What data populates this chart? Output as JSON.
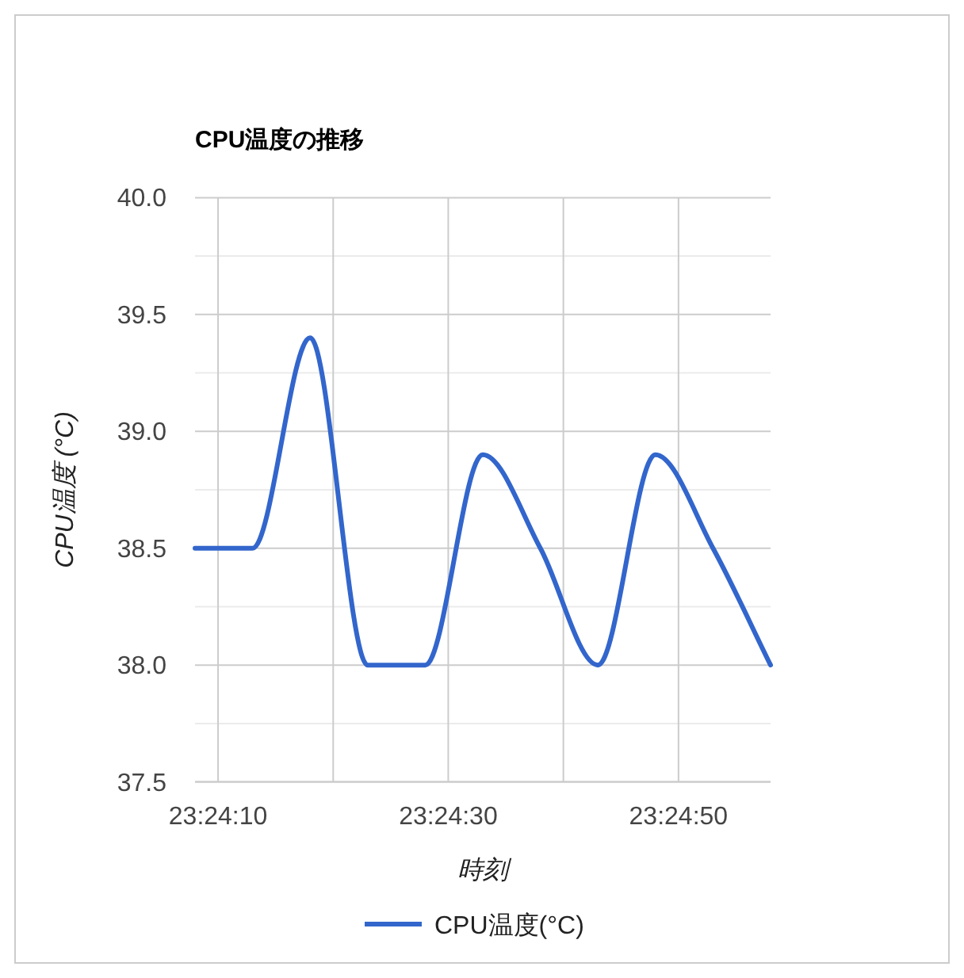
{
  "chart_data": {
    "type": "line",
    "title": "CPU温度の推移",
    "xlabel": "時刻",
    "ylabel": "CPU温度 (°C)",
    "x": [
      23.402222,
      23.403611,
      23.405,
      23.406389,
      23.407778,
      23.409167,
      23.410556,
      23.411944,
      23.413333,
      23.414722,
      23.416111
    ],
    "series": [
      {
        "name": "CPU温度(°C)",
        "color": "#3366cc",
        "values": [
          38.5,
          38.5,
          39.4,
          38.0,
          38.0,
          38.9,
          38.5,
          38.0,
          38.9,
          38.5,
          38.0
        ]
      }
    ],
    "xlim": [
      23.402222,
      23.416111
    ],
    "xticks": [
      {
        "value": 23.402778,
        "label": "23:24:10"
      },
      {
        "value": 23.405556,
        "label": null
      },
      {
        "value": 23.408333,
        "label": "23:24:30"
      },
      {
        "value": 23.411111,
        "label": null
      },
      {
        "value": 23.413889,
        "label": "23:24:50"
      }
    ],
    "ylim": [
      37.5,
      40
    ],
    "yticks": [
      {
        "value": 37.5,
        "label": "37.5"
      },
      {
        "value": 37.75,
        "label": null
      },
      {
        "value": 38,
        "label": "38.0"
      },
      {
        "value": 38.25,
        "label": null
      },
      {
        "value": 38.5,
        "label": "38.5"
      },
      {
        "value": 38.75,
        "label": null
      },
      {
        "value": 39,
        "label": "39.0"
      },
      {
        "value": 39.25,
        "label": null
      },
      {
        "value": 39.5,
        "label": "39.5"
      },
      {
        "value": 39.75,
        "label": null
      },
      {
        "value": 40,
        "label": "40.0"
      }
    ],
    "grid": true,
    "legend": "bottom",
    "line_style": "solid",
    "marker": "none"
  }
}
